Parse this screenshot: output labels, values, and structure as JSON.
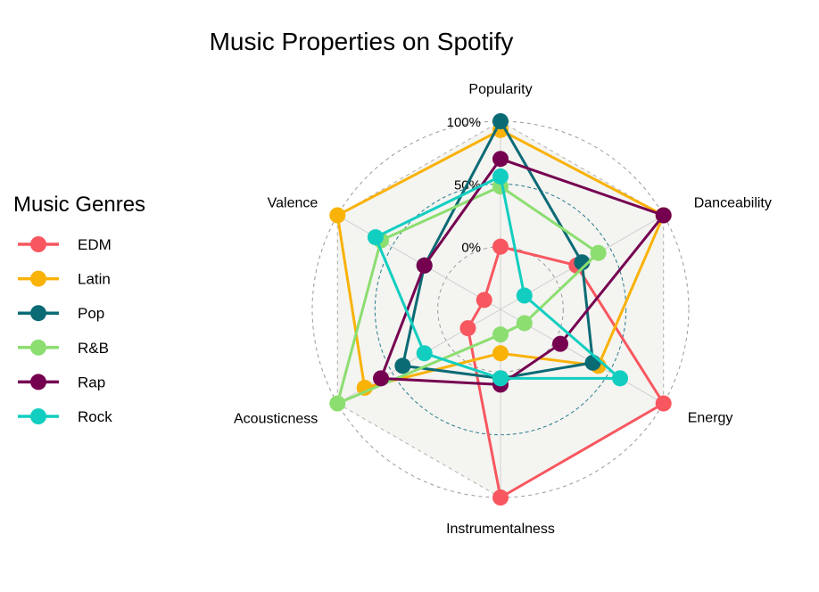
{
  "chart_data": {
    "type": "radar",
    "title": "Music Properties on Spotify",
    "legend_title": "Music Genres",
    "legend_position": "left",
    "axes": [
      "Popularity",
      "Danceability",
      "Energy",
      "Instrumentalness",
      "Acousticness",
      "Valence"
    ],
    "radial_ticks": [
      "0%",
      "50%",
      "100%"
    ],
    "radial_range": [
      -0.5,
      1.0
    ],
    "series": [
      {
        "name": "EDM",
        "color": "#f8575f",
        "values": [
          0.0,
          0.2,
          1.0,
          1.0,
          -0.2,
          -0.35
        ]
      },
      {
        "name": "Latin",
        "color": "#f9b208",
        "values": [
          0.93,
          1.0,
          0.4,
          -0.15,
          0.75,
          1.0
        ]
      },
      {
        "name": "Pop",
        "color": "#0b6b75",
        "values": [
          1.0,
          0.25,
          0.35,
          0.05,
          0.4,
          0.2
        ]
      },
      {
        "name": "R&B",
        "color": "#8cde70",
        "values": [
          0.48,
          0.4,
          -0.28,
          -0.3,
          1.0,
          0.6
        ]
      },
      {
        "name": "Rap",
        "color": "#750050",
        "values": [
          0.7,
          1.0,
          0.05,
          0.1,
          0.6,
          0.2
        ]
      },
      {
        "name": "Rock",
        "color": "#12cec0",
        "values": [
          0.56,
          -0.28,
          0.6,
          0.05,
          0.2,
          0.65
        ]
      }
    ]
  }
}
